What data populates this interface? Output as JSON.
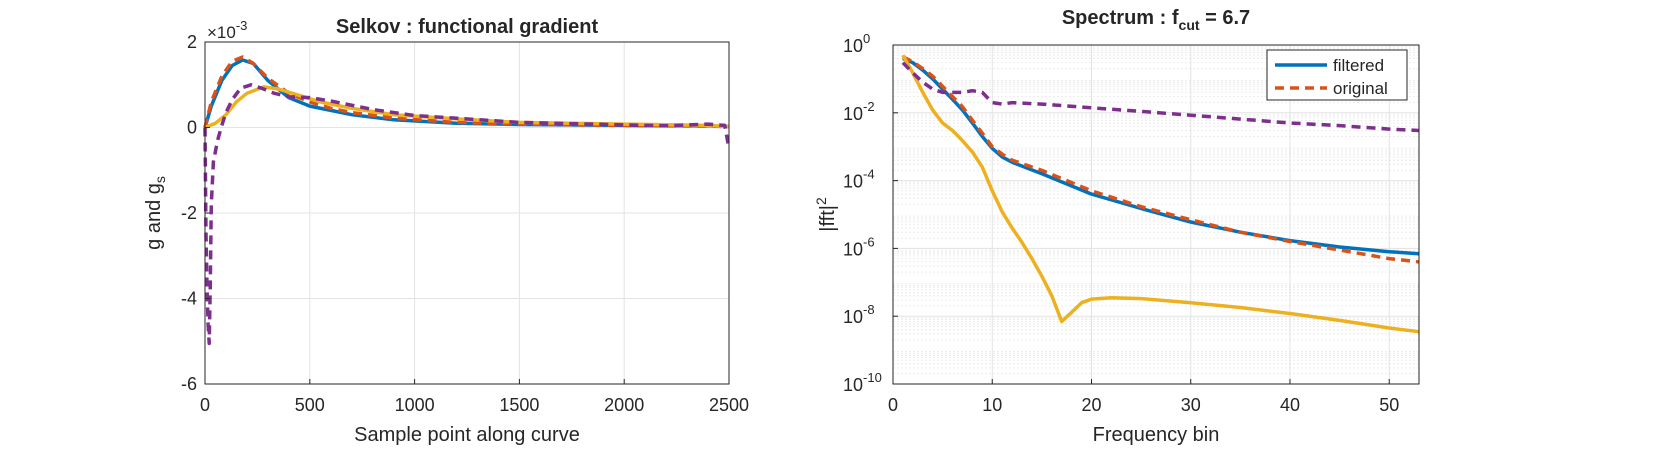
{
  "chart_data": [
    {
      "type": "line",
      "title": "Selkov : functional gradient",
      "xlabel": "Sample point along curve",
      "ylabel": "g and g",
      "ylabel_subscript": "s",
      "exponent_label": "×10",
      "exponent_power": "-3",
      "xlim": [
        0,
        2500
      ],
      "ylim": [
        -6,
        2
      ],
      "xticks": [
        0,
        500,
        1000,
        1500,
        2000,
        2500
      ],
      "yticks": [
        -6,
        -4,
        -2,
        0,
        2
      ],
      "grid": true,
      "series": [
        {
          "color": "#0072BD",
          "style": "solid",
          "x": [
            0,
            30,
            80,
            130,
            180,
            230,
            300,
            400,
            500,
            600,
            700,
            900,
            1200,
            1500,
            2000,
            2400,
            2500
          ],
          "y": [
            0,
            0.5,
            1.1,
            1.45,
            1.58,
            1.5,
            1.1,
            0.7,
            0.5,
            0.4,
            0.3,
            0.18,
            0.1,
            0.07,
            0.05,
            0.04,
            0.02
          ]
        },
        {
          "color": "#D95319",
          "style": "dashed",
          "x": [
            0,
            30,
            80,
            130,
            180,
            230,
            300,
            400,
            500,
            600,
            700,
            900,
            1200,
            1500,
            2000,
            2400,
            2500
          ],
          "y": [
            0,
            0.6,
            1.2,
            1.55,
            1.65,
            1.5,
            1.15,
            0.8,
            0.6,
            0.45,
            0.35,
            0.22,
            0.12,
            0.08,
            0.05,
            0.03,
            0.02
          ]
        },
        {
          "color": "#EDB120",
          "style": "solid",
          "x": [
            0,
            50,
            100,
            150,
            200,
            280,
            350,
            450,
            550,
            700,
            900,
            1200,
            1500,
            2000,
            2400,
            2500
          ],
          "y": [
            0,
            0.1,
            0.3,
            0.6,
            0.8,
            0.95,
            0.9,
            0.75,
            0.6,
            0.45,
            0.3,
            0.2,
            0.12,
            0.08,
            0.05,
            0.02
          ]
        },
        {
          "color": "#7E2F8E",
          "style": "dashed",
          "x": [
            0,
            5,
            10,
            15,
            20,
            25,
            30,
            40,
            60,
            80,
            100,
            130,
            170,
            220,
            270,
            330,
            400,
            500,
            600,
            800,
            1000,
            1500,
            2000,
            2200,
            2400,
            2480,
            2500
          ],
          "y": [
            0,
            -2.5,
            -3.8,
            -4.6,
            -5.05,
            -3.8,
            -1.8,
            -0.8,
            -0.3,
            0.05,
            0.35,
            0.65,
            0.92,
            1.0,
            0.92,
            0.8,
            0.72,
            0.7,
            0.62,
            0.42,
            0.28,
            0.12,
            0.06,
            0.04,
            0.08,
            0.05,
            -0.5
          ]
        }
      ]
    },
    {
      "type": "line",
      "title": "Spectrum : f",
      "title_subscript": "cut",
      "title_suffix": " = 6.7",
      "xlabel": "Frequency bin",
      "ylabel": "|fft|",
      "ylabel_superscript": "2",
      "yscale": "log",
      "xlim": [
        0,
        53
      ],
      "ylim": [
        1e-10,
        1
      ],
      "xticks": [
        0,
        10,
        20,
        30,
        40,
        50
      ],
      "yticks": [
        -10,
        -8,
        -6,
        -4,
        -2,
        0
      ],
      "ytick_base": "10",
      "grid": true,
      "minor_grid": true,
      "legend_position": "top-right",
      "series": [
        {
          "name": "filtered",
          "color": "#0072BD",
          "style": "solid",
          "in_legend": true,
          "x": [
            1,
            2,
            3,
            4,
            5,
            6,
            7,
            8,
            9,
            10,
            11,
            12,
            15,
            20,
            25,
            30,
            35,
            40,
            45,
            50,
            53
          ],
          "y": [
            0.4,
            0.3,
            0.18,
            0.1,
            0.05,
            0.025,
            0.012,
            0.005,
            0.002,
            0.0009,
            0.0005,
            0.00035,
            0.00016,
            4e-05,
            1.5e-05,
            6e-06,
            3e-06,
            1.7e-06,
            1.1e-06,
            8e-07,
            7e-07
          ]
        },
        {
          "name": "original",
          "color": "#D95319",
          "style": "dashed",
          "in_legend": true,
          "x": [
            1,
            2,
            3,
            4,
            5,
            6,
            7,
            8,
            9,
            10,
            11,
            12,
            15,
            20,
            25,
            30,
            35,
            40,
            45,
            50,
            53
          ],
          "y": [
            0.45,
            0.32,
            0.2,
            0.12,
            0.06,
            0.03,
            0.015,
            0.006,
            0.0025,
            0.001,
            0.0006,
            0.0004,
            0.0002,
            5e-05,
            1.7e-05,
            7e-06,
            3e-06,
            1.6e-06,
            9e-07,
            5e-07,
            4e-07
          ]
        },
        {
          "color": "#EDB120",
          "style": "solid",
          "in_legend": false,
          "x": [
            1,
            2,
            3,
            4,
            5,
            6,
            7,
            8,
            9,
            10,
            11,
            12,
            13,
            14,
            15,
            16,
            17,
            18,
            19,
            20,
            22,
            25,
            30,
            35,
            40,
            45,
            50,
            53
          ],
          "y": [
            0.5,
            0.15,
            0.04,
            0.012,
            0.005,
            0.003,
            0.0015,
            0.0007,
            0.00025,
            5e-05,
            1.2e-05,
            4e-06,
            1.5e-06,
            5e-07,
            1.5e-07,
            4e-08,
            7e-09,
            1.3e-08,
            2.5e-08,
            3.2e-08,
            3.5e-08,
            3.3e-08,
            2.5e-08,
            1.8e-08,
            1.2e-08,
            7.5e-09,
            4.5e-09,
            3.5e-09
          ]
        },
        {
          "color": "#7E2F8E",
          "style": "dashed",
          "in_legend": false,
          "x": [
            1,
            2,
            3,
            4,
            5,
            6,
            7,
            8,
            9,
            10,
            11,
            12,
            15,
            20,
            25,
            30,
            35,
            40,
            45,
            50,
            53
          ],
          "y": [
            0.3,
            0.15,
            0.08,
            0.05,
            0.04,
            0.04,
            0.04,
            0.045,
            0.04,
            0.02,
            0.018,
            0.02,
            0.018,
            0.014,
            0.011,
            0.0085,
            0.0065,
            0.005,
            0.0042,
            0.0033,
            0.003
          ]
        }
      ]
    }
  ]
}
